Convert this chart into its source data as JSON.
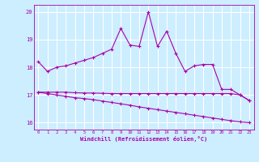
{
  "xlabel": "Windchill (Refroidissement éolien,°C)",
  "bg_color": "#cceeff",
  "grid_color": "#ffffff",
  "line_color": "#aa00aa",
  "xlim": [
    -0.5,
    23.5
  ],
  "ylim": [
    15.75,
    20.25
  ],
  "xticks": [
    0,
    1,
    2,
    3,
    4,
    5,
    6,
    7,
    8,
    9,
    10,
    11,
    12,
    13,
    14,
    15,
    16,
    17,
    18,
    19,
    20,
    21,
    22,
    23
  ],
  "yticks": [
    16,
    17,
    18,
    19,
    20
  ],
  "curve1_x": [
    0,
    1,
    2,
    3,
    4,
    5,
    6,
    7,
    8,
    9,
    10,
    11,
    12,
    13,
    14,
    15,
    16,
    17,
    18,
    19,
    20,
    21,
    22,
    23
  ],
  "curve1_y": [
    18.2,
    17.85,
    18.0,
    18.05,
    18.15,
    18.25,
    18.35,
    18.5,
    18.65,
    19.4,
    18.8,
    18.75,
    20.0,
    18.75,
    19.3,
    18.5,
    17.85,
    18.05,
    18.1,
    18.1,
    17.2,
    17.2,
    17.0,
    16.8
  ],
  "curve2_x": [
    0,
    1,
    2,
    3,
    4,
    5,
    6,
    7,
    8,
    9,
    10,
    11,
    12,
    13,
    14,
    15,
    16,
    17,
    18,
    19,
    20,
    21,
    22,
    23
  ],
  "curve2_y": [
    17.1,
    17.05,
    17.0,
    16.95,
    16.9,
    16.87,
    16.83,
    16.78,
    16.73,
    16.68,
    16.63,
    16.57,
    16.52,
    16.47,
    16.42,
    16.37,
    16.32,
    16.27,
    16.22,
    16.17,
    16.12,
    16.07,
    16.03,
    16.0
  ],
  "curve3_x": [
    0,
    1,
    2,
    3,
    4,
    5,
    6,
    7,
    8,
    9,
    10,
    11,
    12,
    13,
    14,
    15,
    16,
    17,
    18,
    19,
    20,
    21,
    22,
    23
  ],
  "curve3_y": [
    17.1,
    17.1,
    17.1,
    17.1,
    17.08,
    17.07,
    17.07,
    17.06,
    17.05,
    17.05,
    17.05,
    17.05,
    17.05,
    17.05,
    17.05,
    17.05,
    17.05,
    17.05,
    17.05,
    17.05,
    17.05,
    17.05,
    17.0,
    16.8
  ],
  "marker": "+",
  "markersize": 3.5,
  "linewidth": 0.8
}
